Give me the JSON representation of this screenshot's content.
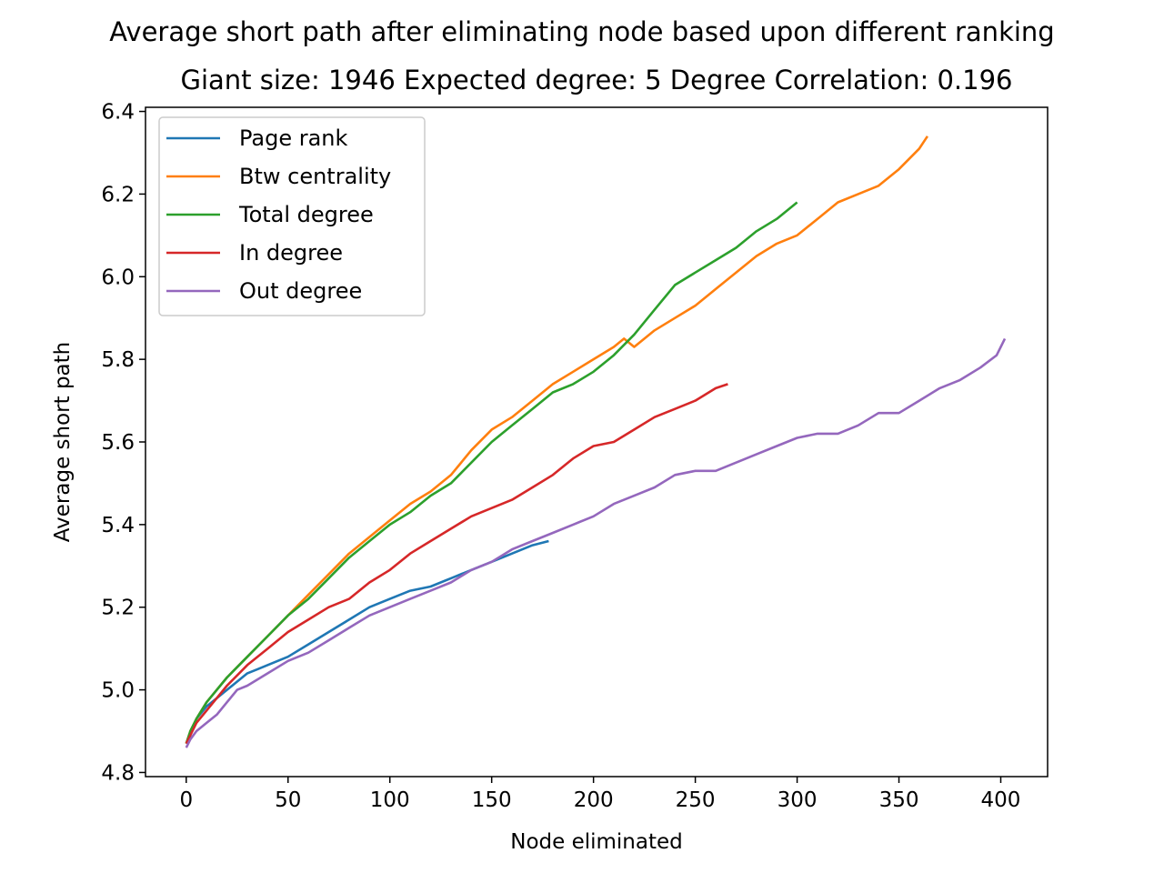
{
  "chart_data": {
    "type": "line",
    "title": "Average short path after eliminating node based upon different ranking",
    "subtitle": "Giant size: 1946  Expected degree: 5  Degree Correlation: 0.196",
    "xlabel": "Node eliminated",
    "ylabel": "Average short path",
    "xlim": [
      -20,
      423
    ],
    "ylim": [
      4.79,
      6.41
    ],
    "xticks": [
      0,
      50,
      100,
      150,
      200,
      250,
      300,
      350,
      400
    ],
    "xtick_labels": [
      "0",
      "50",
      "100",
      "150",
      "200",
      "250",
      "300",
      "350",
      "400"
    ],
    "yticks": [
      4.8,
      5.0,
      5.2,
      5.4,
      5.6,
      5.8,
      6.0,
      6.2,
      6.4
    ],
    "ytick_labels": [
      "4.8",
      "5.0",
      "5.2",
      "5.4",
      "5.6",
      "5.8",
      "6.0",
      "6.2",
      "6.4"
    ],
    "grid": false,
    "legend_position": "top-left",
    "series": [
      {
        "name": "Page rank",
        "color": "#1f77b4",
        "points": [
          [
            0,
            4.87
          ],
          [
            2,
            4.89
          ],
          [
            5,
            4.93
          ],
          [
            10,
            4.96
          ],
          [
            15,
            4.98
          ],
          [
            20,
            5.0
          ],
          [
            25,
            5.02
          ],
          [
            30,
            5.04
          ],
          [
            35,
            5.05
          ],
          [
            40,
            5.06
          ],
          [
            50,
            5.08
          ],
          [
            60,
            5.11
          ],
          [
            70,
            5.14
          ],
          [
            80,
            5.17
          ],
          [
            90,
            5.2
          ],
          [
            100,
            5.22
          ],
          [
            110,
            5.24
          ],
          [
            120,
            5.25
          ],
          [
            130,
            5.27
          ],
          [
            140,
            5.29
          ],
          [
            150,
            5.31
          ],
          [
            160,
            5.33
          ],
          [
            170,
            5.35
          ],
          [
            178,
            5.36
          ]
        ]
      },
      {
        "name": "Btw centrality",
        "color": "#ff7f0e",
        "points": [
          [
            0,
            4.87
          ],
          [
            2,
            4.9
          ],
          [
            5,
            4.93
          ],
          [
            10,
            4.97
          ],
          [
            20,
            5.03
          ],
          [
            30,
            5.08
          ],
          [
            40,
            5.13
          ],
          [
            50,
            5.18
          ],
          [
            60,
            5.23
          ],
          [
            70,
            5.28
          ],
          [
            80,
            5.33
          ],
          [
            90,
            5.37
          ],
          [
            100,
            5.41
          ],
          [
            110,
            5.45
          ],
          [
            120,
            5.48
          ],
          [
            130,
            5.52
          ],
          [
            140,
            5.58
          ],
          [
            150,
            5.63
          ],
          [
            160,
            5.66
          ],
          [
            170,
            5.7
          ],
          [
            180,
            5.74
          ],
          [
            190,
            5.77
          ],
          [
            200,
            5.8
          ],
          [
            210,
            5.83
          ],
          [
            215,
            5.85
          ],
          [
            220,
            5.83
          ],
          [
            230,
            5.87
          ],
          [
            240,
            5.9
          ],
          [
            250,
            5.93
          ],
          [
            260,
            5.97
          ],
          [
            270,
            6.01
          ],
          [
            280,
            6.05
          ],
          [
            290,
            6.08
          ],
          [
            300,
            6.1
          ],
          [
            310,
            6.14
          ],
          [
            320,
            6.18
          ],
          [
            330,
            6.2
          ],
          [
            340,
            6.22
          ],
          [
            350,
            6.26
          ],
          [
            360,
            6.31
          ],
          [
            364,
            6.34
          ]
        ]
      },
      {
        "name": "Total degree",
        "color": "#2ca02c",
        "points": [
          [
            0,
            4.87
          ],
          [
            2,
            4.9
          ],
          [
            5,
            4.93
          ],
          [
            10,
            4.97
          ],
          [
            20,
            5.03
          ],
          [
            30,
            5.08
          ],
          [
            40,
            5.13
          ],
          [
            50,
            5.18
          ],
          [
            60,
            5.22
          ],
          [
            70,
            5.27
          ],
          [
            80,
            5.32
          ],
          [
            90,
            5.36
          ],
          [
            100,
            5.4
          ],
          [
            110,
            5.43
          ],
          [
            120,
            5.47
          ],
          [
            130,
            5.5
          ],
          [
            140,
            5.55
          ],
          [
            150,
            5.6
          ],
          [
            160,
            5.64
          ],
          [
            170,
            5.68
          ],
          [
            180,
            5.72
          ],
          [
            190,
            5.74
          ],
          [
            200,
            5.77
          ],
          [
            210,
            5.81
          ],
          [
            220,
            5.86
          ],
          [
            230,
            5.92
          ],
          [
            240,
            5.98
          ],
          [
            250,
            6.01
          ],
          [
            260,
            6.04
          ],
          [
            270,
            6.07
          ],
          [
            280,
            6.11
          ],
          [
            290,
            6.14
          ],
          [
            300,
            6.18
          ]
        ]
      },
      {
        "name": "In degree",
        "color": "#d62728",
        "points": [
          [
            0,
            4.87
          ],
          [
            2,
            4.89
          ],
          [
            5,
            4.92
          ],
          [
            10,
            4.95
          ],
          [
            20,
            5.01
          ],
          [
            30,
            5.06
          ],
          [
            40,
            5.1
          ],
          [
            50,
            5.14
          ],
          [
            60,
            5.17
          ],
          [
            70,
            5.2
          ],
          [
            80,
            5.22
          ],
          [
            90,
            5.26
          ],
          [
            100,
            5.29
          ],
          [
            110,
            5.33
          ],
          [
            120,
            5.36
          ],
          [
            130,
            5.39
          ],
          [
            140,
            5.42
          ],
          [
            150,
            5.44
          ],
          [
            160,
            5.46
          ],
          [
            170,
            5.49
          ],
          [
            180,
            5.52
          ],
          [
            190,
            5.56
          ],
          [
            200,
            5.59
          ],
          [
            210,
            5.6
          ],
          [
            220,
            5.63
          ],
          [
            230,
            5.66
          ],
          [
            240,
            5.68
          ],
          [
            250,
            5.7
          ],
          [
            260,
            5.73
          ],
          [
            266,
            5.74
          ]
        ]
      },
      {
        "name": "Out degree",
        "color": "#9467bd",
        "points": [
          [
            0,
            4.86
          ],
          [
            2,
            4.88
          ],
          [
            5,
            4.9
          ],
          [
            10,
            4.92
          ],
          [
            15,
            4.94
          ],
          [
            20,
            4.97
          ],
          [
            25,
            5.0
          ],
          [
            30,
            5.01
          ],
          [
            40,
            5.04
          ],
          [
            50,
            5.07
          ],
          [
            60,
            5.09
          ],
          [
            70,
            5.12
          ],
          [
            80,
            5.15
          ],
          [
            90,
            5.18
          ],
          [
            100,
            5.2
          ],
          [
            110,
            5.22
          ],
          [
            120,
            5.24
          ],
          [
            130,
            5.26
          ],
          [
            140,
            5.29
          ],
          [
            150,
            5.31
          ],
          [
            160,
            5.34
          ],
          [
            170,
            5.36
          ],
          [
            180,
            5.38
          ],
          [
            190,
            5.4
          ],
          [
            200,
            5.42
          ],
          [
            210,
            5.45
          ],
          [
            220,
            5.47
          ],
          [
            230,
            5.49
          ],
          [
            240,
            5.52
          ],
          [
            250,
            5.53
          ],
          [
            260,
            5.53
          ],
          [
            270,
            5.55
          ],
          [
            280,
            5.57
          ],
          [
            290,
            5.59
          ],
          [
            300,
            5.61
          ],
          [
            310,
            5.62
          ],
          [
            320,
            5.62
          ],
          [
            330,
            5.64
          ],
          [
            340,
            5.67
          ],
          [
            350,
            5.67
          ],
          [
            360,
            5.7
          ],
          [
            370,
            5.73
          ],
          [
            380,
            5.75
          ],
          [
            390,
            5.78
          ],
          [
            398,
            5.81
          ],
          [
            402,
            5.85
          ]
        ]
      }
    ]
  }
}
